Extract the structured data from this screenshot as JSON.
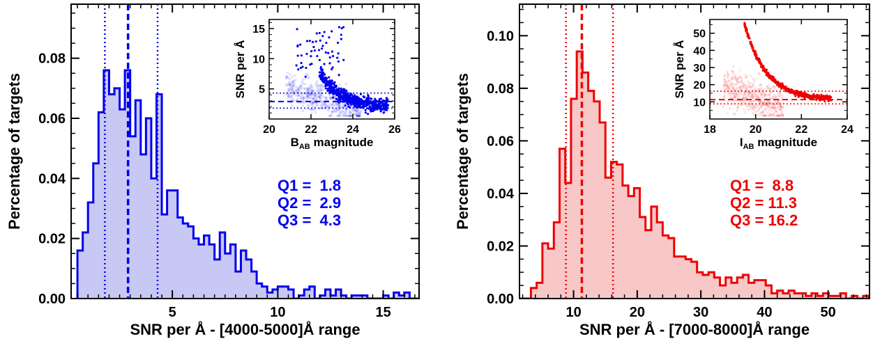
{
  "chart_data": [
    {
      "type": "histogram",
      "color": "#0000ee",
      "fill_color": "#c8c8f4",
      "xlabel": "SNR per Å - [4000-5000]Å range",
      "ylabel": "Percentage of targets",
      "xlim": [
        0.2,
        16.7
      ],
      "ylim": [
        0,
        0.098
      ],
      "xticks": [
        5,
        10,
        15
      ],
      "yticks": [
        0.0,
        0.02,
        0.04,
        0.06,
        0.08
      ],
      "ytick_labels": [
        "0.00",
        "0.02",
        "0.04",
        "0.06",
        "0.08"
      ],
      "bin_width": 0.25,
      "bin_start": 0.5,
      "values": [
        0.016,
        0.022,
        0.032,
        0.045,
        0.062,
        0.076,
        0.068,
        0.07,
        0.063,
        0.076,
        0.054,
        0.066,
        0.048,
        0.06,
        0.04,
        0.068,
        0.028,
        0.036,
        0.036,
        0.027,
        0.025,
        0.024,
        0.02,
        0.018,
        0.021,
        0.018,
        0.013,
        0.022,
        0.015,
        0.018,
        0.009,
        0.016,
        0.013,
        0.009,
        0.005,
        0.004,
        0.002,
        0.003,
        0.004,
        0.004,
        0.003,
        0.0,
        0.001,
        0.003,
        0.004,
        0.0,
        0.001,
        0.003,
        0.001,
        0.003,
        0.001,
        0.0,
        0.001,
        0.001,
        0.001,
        0.0,
        0.0,
        0.0,
        0.001,
        0.0,
        0.002,
        0.001,
        0.002,
        0.0,
        0.0,
        0.0,
        0.002,
        0.001,
        0.0,
        0.001,
        0.0,
        0.0,
        0.0,
        0.0,
        0.004,
        0.0,
        0.0,
        0.0,
        0.0,
        0.0,
        0.0,
        0.0,
        0.0,
        0.0,
        0.0,
        0.0,
        0.0,
        0.0,
        0.0,
        0.0,
        0.0,
        0.0,
        0.0,
        0.0,
        0.0,
        0.0,
        0.0,
        0.0,
        0.0,
        0.0,
        0.0,
        0.0,
        0.0,
        0.0,
        0.0,
        0.0,
        0.0,
        0.0,
        0.0,
        0.0,
        0.0,
        0.0
      ],
      "quartiles": {
        "Q1": 1.8,
        "Q2": 2.9,
        "Q3": 4.3
      },
      "quartile_text": [
        "Q1 =  1.8",
        "Q2 =  2.9",
        "Q3 =  4.3"
      ],
      "inset": {
        "xlabel": "B",
        "xlabel_sub": "AB",
        "xlabel_suffix": " magnitude",
        "ylabel": "SNR per Å",
        "xlim": [
          20,
          26
        ],
        "ylim": [
          0,
          16.5
        ],
        "xticks": [
          20,
          22,
          24,
          26
        ],
        "yticks": [
          5,
          10,
          15
        ]
      }
    },
    {
      "type": "histogram",
      "color": "#ee0000",
      "fill_color": "#f8c8c8",
      "xlabel": "SNR per Å - [7000-8000]Å range",
      "ylabel": "Percentage of targets",
      "xlim": [
        1.5,
        56.5
      ],
      "ylim": [
        0,
        0.112
      ],
      "xticks": [
        10,
        20,
        30,
        40,
        50
      ],
      "yticks": [
        0.0,
        0.02,
        0.04,
        0.06,
        0.08,
        0.1
      ],
      "ytick_labels": [
        "0.00",
        "0.02",
        "0.04",
        "0.06",
        "0.08",
        "0.10"
      ],
      "bin_width": 0.9,
      "bin_start": 1.5,
      "values": [
        0.0,
        0.0,
        0.004,
        0.006,
        0.021,
        0.019,
        0.029,
        0.057,
        0.044,
        0.076,
        0.094,
        0.086,
        0.079,
        0.075,
        0.067,
        0.046,
        0.052,
        0.051,
        0.043,
        0.039,
        0.042,
        0.031,
        0.026,
        0.035,
        0.029,
        0.024,
        0.023,
        0.016,
        0.016,
        0.015,
        0.014,
        0.01,
        0.009,
        0.01,
        0.008,
        0.005,
        0.008,
        0.006,
        0.008,
        0.009,
        0.006,
        0.007,
        0.007,
        0.005,
        0.002,
        0.003,
        0.002,
        0.003,
        0.002,
        0.002,
        0.001,
        0.002,
        0.001,
        0.002,
        0.001,
        0.001,
        0.002,
        0.0,
        0.001,
        0.0,
        0.001,
        0.0
      ],
      "quartiles": {
        "Q1": 8.8,
        "Q2": 11.3,
        "Q3": 16.2
      },
      "quartile_text": [
        "Q1 =  8.8",
        "Q2 = 11.3",
        "Q3 = 16.2"
      ],
      "inset": {
        "xlabel": "I",
        "xlabel_sub": "AB",
        "xlabel_suffix": " magnitude",
        "ylabel": "SNR per Å",
        "xlim": [
          18,
          24
        ],
        "ylim": [
          0,
          58
        ],
        "xticks": [
          18,
          20,
          22,
          24
        ],
        "yticks": [
          10,
          20,
          30,
          40,
          50
        ]
      }
    }
  ]
}
